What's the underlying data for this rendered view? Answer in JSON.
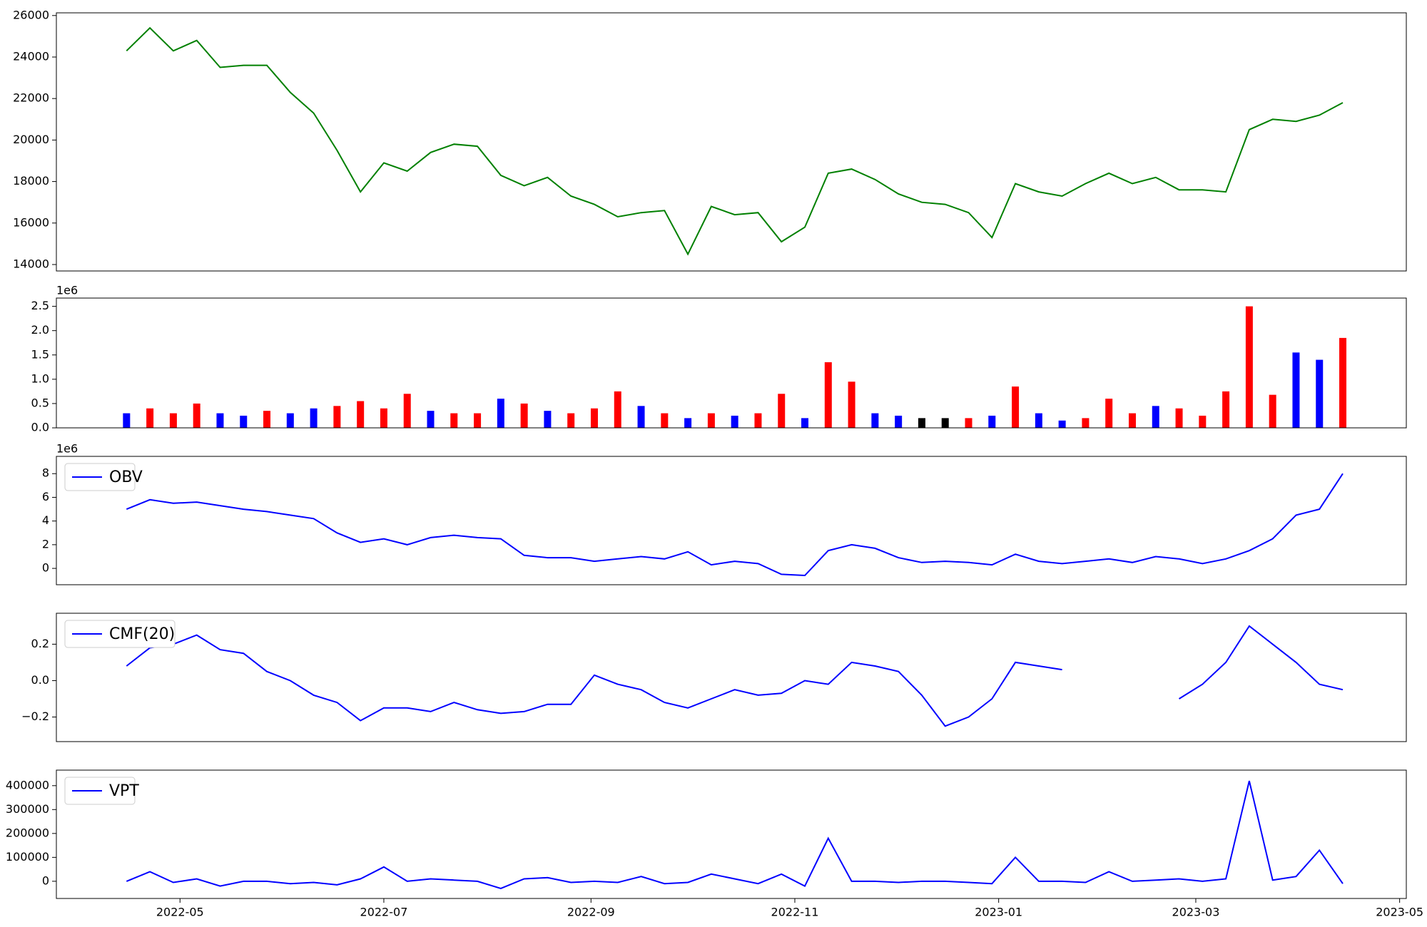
{
  "chart_data": [
    {
      "type": "line",
      "x": [
        "2022-04-15",
        "2022-04-22",
        "2022-04-29",
        "2022-05-06",
        "2022-05-13",
        "2022-05-20",
        "2022-05-27",
        "2022-06-03",
        "2022-06-10",
        "2022-06-17",
        "2022-06-24",
        "2022-07-01",
        "2022-07-08",
        "2022-07-15",
        "2022-07-22",
        "2022-07-29",
        "2022-08-05",
        "2022-08-12",
        "2022-08-19",
        "2022-08-26",
        "2022-09-02",
        "2022-09-09",
        "2022-09-16",
        "2022-09-23",
        "2022-09-30",
        "2022-10-07",
        "2022-10-14",
        "2022-10-21",
        "2022-10-28",
        "2022-11-04",
        "2022-11-11",
        "2022-11-18",
        "2022-11-25",
        "2022-12-02",
        "2022-12-09",
        "2022-12-16",
        "2022-12-23",
        "2022-12-30",
        "2023-01-06",
        "2023-01-13",
        "2023-01-20",
        "2023-01-27",
        "2023-02-03",
        "2023-02-10",
        "2023-02-17",
        "2023-02-24",
        "2023-03-03",
        "2023-03-10",
        "2023-03-17",
        "2023-03-24",
        "2023-03-31",
        "2023-04-07",
        "2023-04-14"
      ],
      "values": [
        24300,
        25400,
        24300,
        24800,
        23500,
        23600,
        23600,
        22300,
        21300,
        19500,
        17500,
        18900,
        18500,
        19400,
        19800,
        19700,
        18300,
        17800,
        18200,
        17300,
        16900,
        16300,
        16500,
        16600,
        14500,
        16800,
        16400,
        16500,
        15100,
        15800,
        18400,
        18600,
        18100,
        17400,
        17000,
        16900,
        16500,
        15300,
        17900,
        17500,
        17300,
        17900,
        18400,
        17900,
        18200,
        17600,
        17600,
        17500,
        20500,
        21000,
        20900,
        21200,
        21800
      ],
      "color": "green",
      "xlim": [
        "2022-03-25",
        "2023-05-03"
      ],
      "ylim": [
        13690,
        26130
      ],
      "yticks": [
        14000,
        16000,
        18000,
        20000,
        22000,
        24000,
        26000
      ]
    },
    {
      "type": "bar",
      "x": [
        "2022-04-15",
        "2022-04-22",
        "2022-04-29",
        "2022-05-06",
        "2022-05-13",
        "2022-05-20",
        "2022-05-27",
        "2022-06-03",
        "2022-06-10",
        "2022-06-17",
        "2022-06-24",
        "2022-07-01",
        "2022-07-08",
        "2022-07-15",
        "2022-07-22",
        "2022-07-29",
        "2022-08-05",
        "2022-08-12",
        "2022-08-19",
        "2022-08-26",
        "2022-09-02",
        "2022-09-09",
        "2022-09-16",
        "2022-09-23",
        "2022-09-30",
        "2022-10-07",
        "2022-10-14",
        "2022-10-21",
        "2022-10-28",
        "2022-11-04",
        "2022-11-11",
        "2022-11-18",
        "2022-11-25",
        "2022-12-02",
        "2022-12-09",
        "2022-12-16",
        "2022-12-23",
        "2022-12-30",
        "2023-01-06",
        "2023-01-13",
        "2023-01-20",
        "2023-01-27",
        "2023-02-03",
        "2023-02-10",
        "2023-02-17",
        "2023-02-24",
        "2023-03-03",
        "2023-03-10",
        "2023-03-17",
        "2023-03-24",
        "2023-03-31",
        "2023-04-07",
        "2023-04-14"
      ],
      "values": [
        300000,
        400000,
        300000,
        500000,
        300000,
        250000,
        350000,
        300000,
        400000,
        450000,
        550000,
        400000,
        700000,
        350000,
        300000,
        300000,
        600000,
        500000,
        350000,
        300000,
        400000,
        750000,
        450000,
        300000,
        200000,
        300000,
        250000,
        300000,
        700000,
        200000,
        1350000,
        950000,
        300000,
        250000,
        200000,
        200000,
        200000,
        250000,
        850000,
        300000,
        150000,
        200000,
        600000,
        300000,
        450000,
        400000,
        250000,
        750000,
        2500000,
        680000,
        1550000,
        1400000,
        1850000
      ],
      "colors": [
        "blue",
        "red",
        "red",
        "red",
        "blue",
        "blue",
        "red",
        "blue",
        "blue",
        "red",
        "red",
        "red",
        "red",
        "blue",
        "red",
        "red",
        "blue",
        "red",
        "blue",
        "red",
        "red",
        "red",
        "blue",
        "red",
        "blue",
        "red",
        "blue",
        "red",
        "red",
        "blue",
        "red",
        "red",
        "blue",
        "blue",
        "black",
        "black",
        "red",
        "blue",
        "red",
        "blue",
        "blue",
        "red",
        "red",
        "red",
        "blue",
        "red",
        "red",
        "red",
        "red",
        "red",
        "blue",
        "blue",
        "red"
      ],
      "xlim": [
        "2022-03-25",
        "2023-05-03"
      ],
      "ylim": [
        0,
        2670000
      ],
      "yticks": [
        {
          "value": 0,
          "label": "0.0"
        },
        {
          "value": 500000,
          "label": "0.5"
        },
        {
          "value": 1000000,
          "label": "1.0"
        },
        {
          "value": 1500000,
          "label": "1.5"
        },
        {
          "value": 2000000,
          "label": "2.0"
        },
        {
          "value": 2500000,
          "label": "2.5"
        }
      ],
      "y_offset_label": "1e6"
    },
    {
      "type": "line",
      "x": [
        "2022-04-15",
        "2022-04-22",
        "2022-04-29",
        "2022-05-06",
        "2022-05-13",
        "2022-05-20",
        "2022-05-27",
        "2022-06-03",
        "2022-06-10",
        "2022-06-17",
        "2022-06-24",
        "2022-07-01",
        "2022-07-08",
        "2022-07-15",
        "2022-07-22",
        "2022-07-29",
        "2022-08-05",
        "2022-08-12",
        "2022-08-19",
        "2022-08-26",
        "2022-09-02",
        "2022-09-09",
        "2022-09-16",
        "2022-09-23",
        "2022-09-30",
        "2022-10-07",
        "2022-10-14",
        "2022-10-21",
        "2022-10-28",
        "2022-11-04",
        "2022-11-11",
        "2022-11-18",
        "2022-11-25",
        "2022-12-02",
        "2022-12-09",
        "2022-12-16",
        "2022-12-23",
        "2022-12-30",
        "2023-01-06",
        "2023-01-13",
        "2023-01-20",
        "2023-01-27",
        "2023-02-03",
        "2023-02-10",
        "2023-02-17",
        "2023-02-24",
        "2023-03-03",
        "2023-03-10",
        "2023-03-17",
        "2023-03-24",
        "2023-03-31",
        "2023-04-07",
        "2023-04-14"
      ],
      "series": [
        {
          "name": "OBV",
          "color": "blue",
          "values": [
            5000000,
            5800000,
            5500000,
            5600000,
            5300000,
            5000000,
            4800000,
            4500000,
            4200000,
            3000000,
            2200000,
            2500000,
            2000000,
            2600000,
            2800000,
            2600000,
            2500000,
            1100000,
            900000,
            900000,
            600000,
            800000,
            1000000,
            800000,
            1400000,
            300000,
            600000,
            400000,
            -500000,
            -600000,
            1500000,
            2000000,
            1700000,
            900000,
            500000,
            600000,
            500000,
            300000,
            1200000,
            600000,
            400000,
            600000,
            800000,
            500000,
            1000000,
            800000,
            400000,
            800000,
            1500000,
            2500000,
            4500000,
            5000000,
            8000000
          ]
        }
      ],
      "xlim": [
        "2022-03-25",
        "2023-05-03"
      ],
      "ylim": [
        -1380000,
        9460000
      ],
      "yticks": [
        {
          "value": 0,
          "label": "0"
        },
        {
          "value": 2000000,
          "label": "2"
        },
        {
          "value": 4000000,
          "label": "4"
        },
        {
          "value": 6000000,
          "label": "6"
        },
        {
          "value": 8000000,
          "label": "8"
        }
      ],
      "y_offset_label": "1e6",
      "legend": "upper left"
    },
    {
      "type": "line",
      "x": [
        "2022-04-15",
        "2022-04-22",
        "2022-04-29",
        "2022-05-06",
        "2022-05-13",
        "2022-05-20",
        "2022-05-27",
        "2022-06-03",
        "2022-06-10",
        "2022-06-17",
        "2022-06-24",
        "2022-07-01",
        "2022-07-08",
        "2022-07-15",
        "2022-07-22",
        "2022-07-29",
        "2022-08-05",
        "2022-08-12",
        "2022-08-19",
        "2022-08-26",
        "2022-09-02",
        "2022-09-09",
        "2022-09-16",
        "2022-09-23",
        "2022-09-30",
        "2022-10-07",
        "2022-10-14",
        "2022-10-21",
        "2022-10-28",
        "2022-11-04",
        "2022-11-11",
        "2022-11-18",
        "2022-11-25",
        "2022-12-02",
        "2022-12-09",
        "2022-12-16",
        "2022-12-23",
        "2022-12-30",
        "2023-01-06",
        "2023-01-13",
        "2023-01-20",
        "2023-01-27",
        "2023-02-03",
        "2023-02-10",
        "2023-02-17",
        "2023-02-24",
        "2023-03-03",
        "2023-03-10",
        "2023-03-17",
        "2023-03-24",
        "2023-03-31",
        "2023-04-07",
        "2023-04-14"
      ],
      "series": [
        {
          "name": "CMF(20)",
          "color": "blue",
          "values": [
            0.08,
            0.18,
            0.2,
            0.25,
            0.17,
            0.15,
            0.05,
            0.0,
            -0.08,
            -0.12,
            -0.22,
            -0.15,
            -0.15,
            -0.17,
            -0.12,
            -0.16,
            -0.18,
            -0.17,
            -0.13,
            -0.13,
            0.03,
            -0.02,
            -0.05,
            -0.12,
            -0.15,
            -0.1,
            -0.05,
            -0.08,
            -0.07,
            0.0,
            -0.02,
            0.1,
            0.08,
            0.05,
            -0.08,
            -0.25,
            -0.2,
            -0.1,
            0.1,
            0.08,
            0.06,
            null,
            null,
            null,
            null,
            -0.1,
            -0.02,
            0.1,
            0.3,
            0.2,
            0.1,
            -0.02,
            -0.05
          ]
        }
      ],
      "xlim": [
        "2022-03-25",
        "2023-05-03"
      ],
      "ylim": [
        -0.335,
        0.37
      ],
      "yticks": [
        {
          "value": -0.2,
          "label": "−0.2"
        },
        {
          "value": 0,
          "label": "0.0"
        },
        0.2
      ],
      "legend": "upper left"
    },
    {
      "type": "line",
      "x": [
        "2022-04-15",
        "2022-04-22",
        "2022-04-29",
        "2022-05-06",
        "2022-05-13",
        "2022-05-20",
        "2022-05-27",
        "2022-06-03",
        "2022-06-10",
        "2022-06-17",
        "2022-06-24",
        "2022-07-01",
        "2022-07-08",
        "2022-07-15",
        "2022-07-22",
        "2022-07-29",
        "2022-08-05",
        "2022-08-12",
        "2022-08-19",
        "2022-08-26",
        "2022-09-02",
        "2022-09-09",
        "2022-09-16",
        "2022-09-23",
        "2022-09-30",
        "2022-10-07",
        "2022-10-14",
        "2022-10-21",
        "2022-10-28",
        "2022-11-04",
        "2022-11-11",
        "2022-11-18",
        "2022-11-25",
        "2022-12-02",
        "2022-12-09",
        "2022-12-16",
        "2022-12-23",
        "2022-12-30",
        "2023-01-06",
        "2023-01-13",
        "2023-01-20",
        "2023-01-27",
        "2023-02-03",
        "2023-02-10",
        "2023-02-17",
        "2023-02-24",
        "2023-03-03",
        "2023-03-10",
        "2023-03-17",
        "2023-03-24",
        "2023-03-31",
        "2023-04-07",
        "2023-04-14"
      ],
      "series": [
        {
          "name": "VPT",
          "color": "blue",
          "values": [
            0,
            40000,
            -5000,
            10000,
            -20000,
            0,
            0,
            -10000,
            -5000,
            -15000,
            10000,
            60000,
            0,
            10000,
            5000,
            0,
            -30000,
            10000,
            15000,
            -5000,
            0,
            -5000,
            20000,
            -10000,
            -5000,
            30000,
            10000,
            -10000,
            30000,
            -20000,
            180000,
            0,
            0,
            -5000,
            0,
            0,
            -5000,
            -10000,
            100000,
            0,
            0,
            -5000,
            40000,
            0,
            5000,
            10000,
            0,
            10000,
            420000,
            5000,
            20000,
            130000,
            -10000
          ]
        }
      ],
      "xlim": [
        "2022-03-25",
        "2023-05-03"
      ],
      "ylim": [
        -72000,
        465000
      ],
      "yticks": [
        0,
        100000,
        200000,
        300000,
        400000
      ],
      "xticks": [
        {
          "value": "2022-05-01",
          "label": "2022-05"
        },
        {
          "value": "2022-07-01",
          "label": "2022-07"
        },
        {
          "value": "2022-09-01",
          "label": "2022-09"
        },
        {
          "value": "2022-11-01",
          "label": "2022-11"
        },
        {
          "value": "2023-01-01",
          "label": "2023-01"
        },
        {
          "value": "2023-03-01",
          "label": "2023-03"
        },
        {
          "value": "2023-05-01",
          "label": "2023-05"
        }
      ],
      "legend": "upper left"
    }
  ]
}
